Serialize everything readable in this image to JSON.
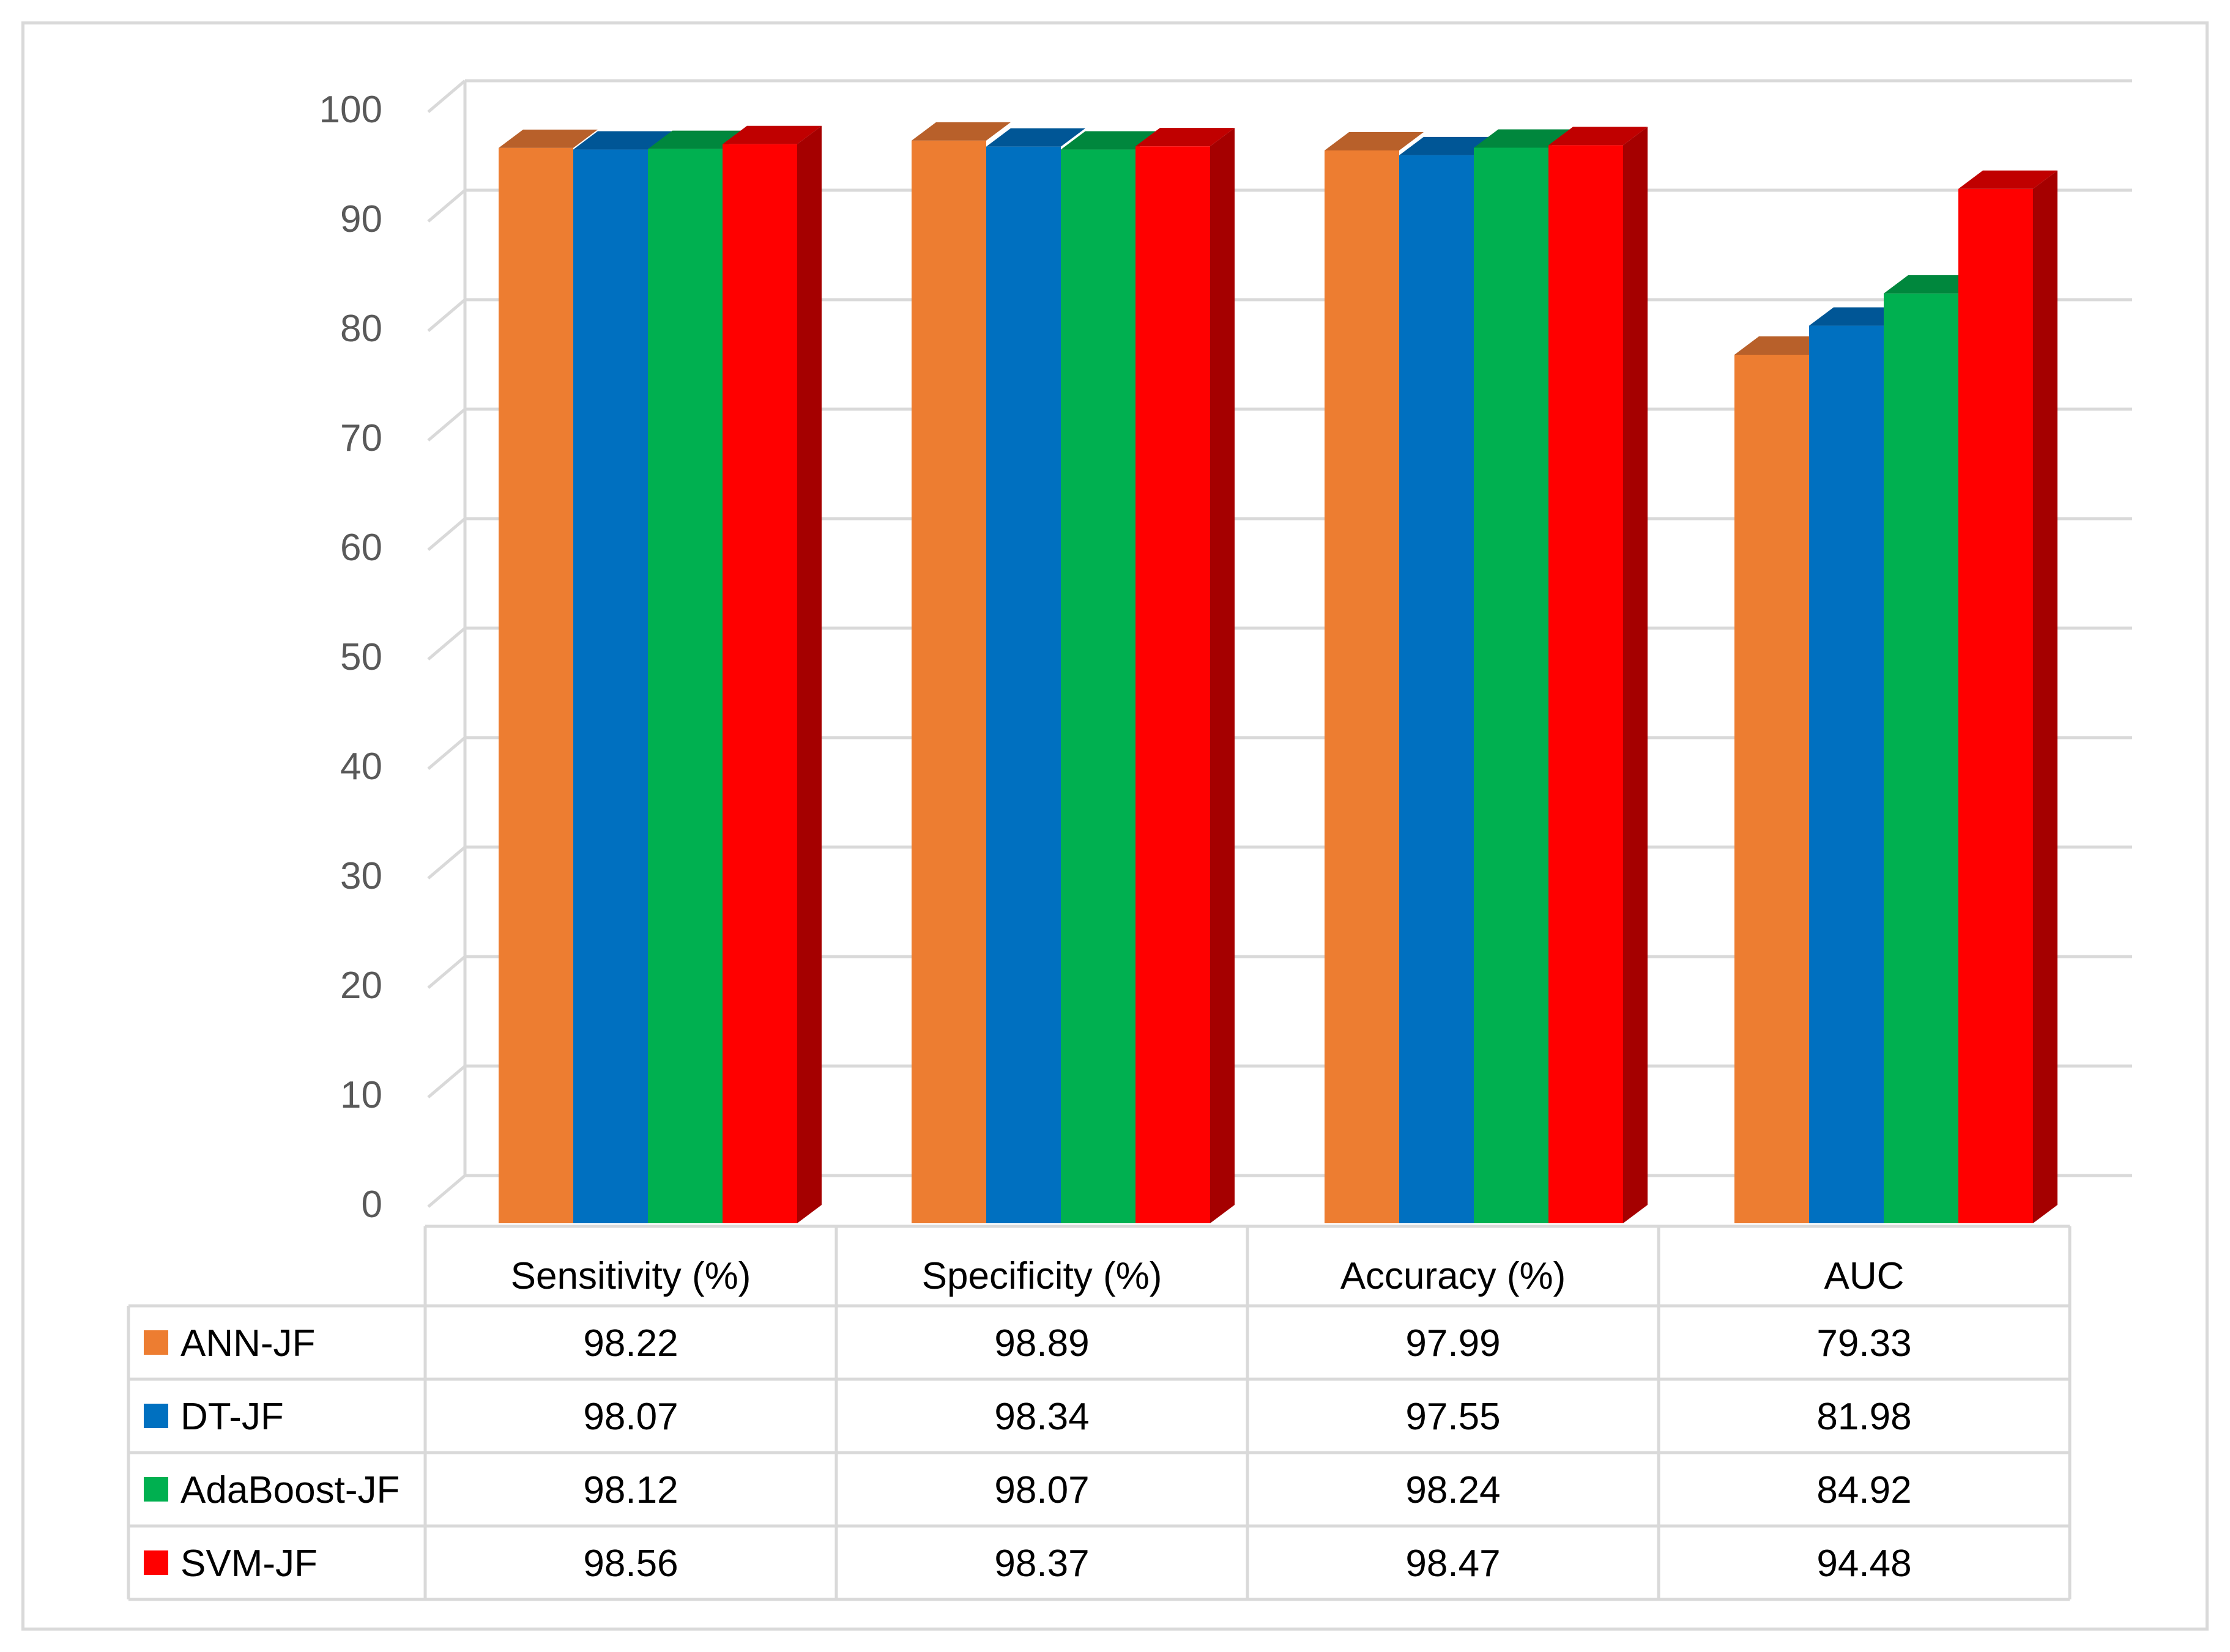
{
  "chart_data": {
    "type": "bar",
    "title": "",
    "xlabel": "",
    "ylabel": "",
    "ylim": [
      0,
      100
    ],
    "grid": true,
    "y_ticks": [
      0,
      10,
      20,
      30,
      40,
      50,
      60,
      70,
      80,
      90,
      100
    ],
    "y_tick_labels": [
      "0",
      "10",
      "20",
      "30",
      "40",
      "50",
      "60",
      "70",
      "80",
      "90",
      "100"
    ],
    "categories": [
      "Sensitivity (%)",
      "Specificity (%)",
      "Accuracy (%)",
      "AUC"
    ],
    "series": [
      {
        "name": "ANN-JF",
        "color": "#ED7D31",
        "top_color": "#B8602A",
        "side_color": "#B8602A",
        "values": [
          98.22,
          98.89,
          97.99,
          79.33
        ],
        "labels": [
          "98.22",
          "98.89",
          "97.99",
          "79.33"
        ]
      },
      {
        "name": "DT-JF",
        "color": "#0070C0",
        "top_color": "#005696",
        "side_color": "#005696",
        "values": [
          98.07,
          98.34,
          97.55,
          81.98
        ],
        "labels": [
          "98.07",
          "98.34",
          "97.55",
          "81.98"
        ]
      },
      {
        "name": "AdaBoost-JF",
        "color": "#00B050",
        "top_color": "#00873D",
        "side_color": "#00873D",
        "values": [
          98.12,
          98.07,
          98.24,
          84.92
        ],
        "labels": [
          "98.12",
          "98.07",
          "98.24",
          "84.92"
        ]
      },
      {
        "name": "SVM-JF",
        "color": "#FF0000",
        "top_color": "#C00000",
        "side_color": "#A50000",
        "values": [
          98.56,
          98.37,
          98.47,
          94.48
        ],
        "labels": [
          "98.56",
          "98.37",
          "98.47",
          "94.48"
        ]
      }
    ],
    "legend_position": "data-table-left"
  }
}
